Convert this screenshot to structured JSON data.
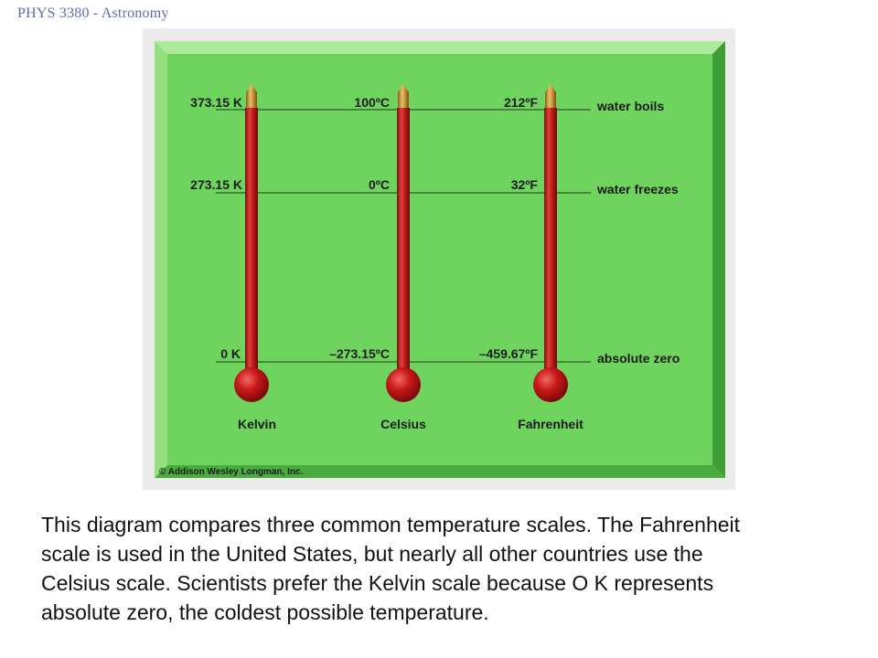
{
  "header": {
    "course_title": "PHYS 3380 - Astronomy"
  },
  "figure": {
    "thermometers": [
      {
        "name": "Kelvin",
        "boils": "373.15 K",
        "freezes": "273.15 K",
        "absolute_zero": "0 K"
      },
      {
        "name": "Celsius",
        "boils": "100ºC",
        "freezes": "0ºC",
        "absolute_zero": "–273.15ºC"
      },
      {
        "name": "Fahrenheit",
        "boils": "212ºF",
        "freezes": "32ºF",
        "absolute_zero": "–459.67ºF"
      }
    ],
    "reference_points": {
      "boils": "water boils",
      "freezes": "water freezes",
      "absolute_zero": "absolute zero"
    },
    "credit": "© Addison Wesley Longman, Inc.",
    "colors": {
      "panel": "#6ed35c",
      "bevel_light": "#a9ea98",
      "bevel_dark": "#3e9b33",
      "tube": "#c41e1e",
      "bulb": "#c8181a",
      "cap": "#c79a3f"
    }
  },
  "caption": {
    "line1": "This diagram compares three common temperature scales. The Fahrenheit",
    "line2": "scale is used in the United States, but nearly all other countries use the",
    "line3": "Celsius scale. Scientists prefer the Kelvin scale because O K represents",
    "line4": "absolute zero, the coldest possible temperature."
  }
}
